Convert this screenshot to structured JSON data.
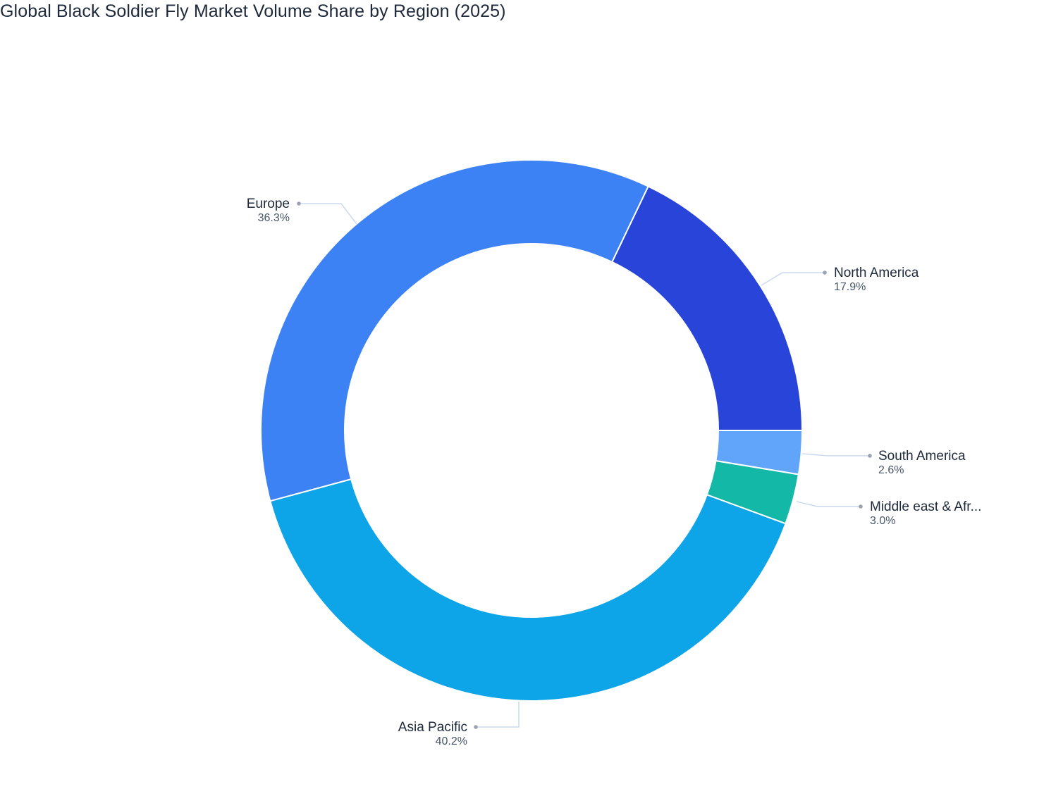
{
  "title": "Global Black Soldier Fly Market Volume Share by Region (2025)",
  "chart_data": {
    "type": "pie",
    "subtype": "donut",
    "title": "Global Black Soldier Fly Market Volume Share by Region (2025)",
    "categories": [
      "North America",
      "Europe",
      "Asia Pacific",
      "Middle east & Africa",
      "South America"
    ],
    "values": [
      17.9,
      36.3,
      40.2,
      3.0,
      2.6
    ],
    "display_labels": [
      "North America",
      "Europe",
      "Asia Pacific",
      "Middle east & Afr...",
      "South America"
    ],
    "value_labels": [
      "17.9%",
      "36.3%",
      "40.2%",
      "3.0%",
      "2.6%"
    ],
    "colors": [
      "#2844D9",
      "#3D82F5",
      "#0EA5E8",
      "#14B8A6",
      "#60A5FA"
    ],
    "hole": 0.69,
    "legend": "none",
    "label_position": "outside"
  },
  "labels": {
    "north_america": {
      "name": "North America",
      "pct": "17.9%"
    },
    "europe": {
      "name": "Europe",
      "pct": "36.3%"
    },
    "asia_pacific": {
      "name": "Asia Pacific",
      "pct": "40.2%"
    },
    "mea": {
      "name": "Middle east & Afr...",
      "pct": "3.0%"
    },
    "south_america": {
      "name": "South America",
      "pct": "2.6%"
    }
  }
}
